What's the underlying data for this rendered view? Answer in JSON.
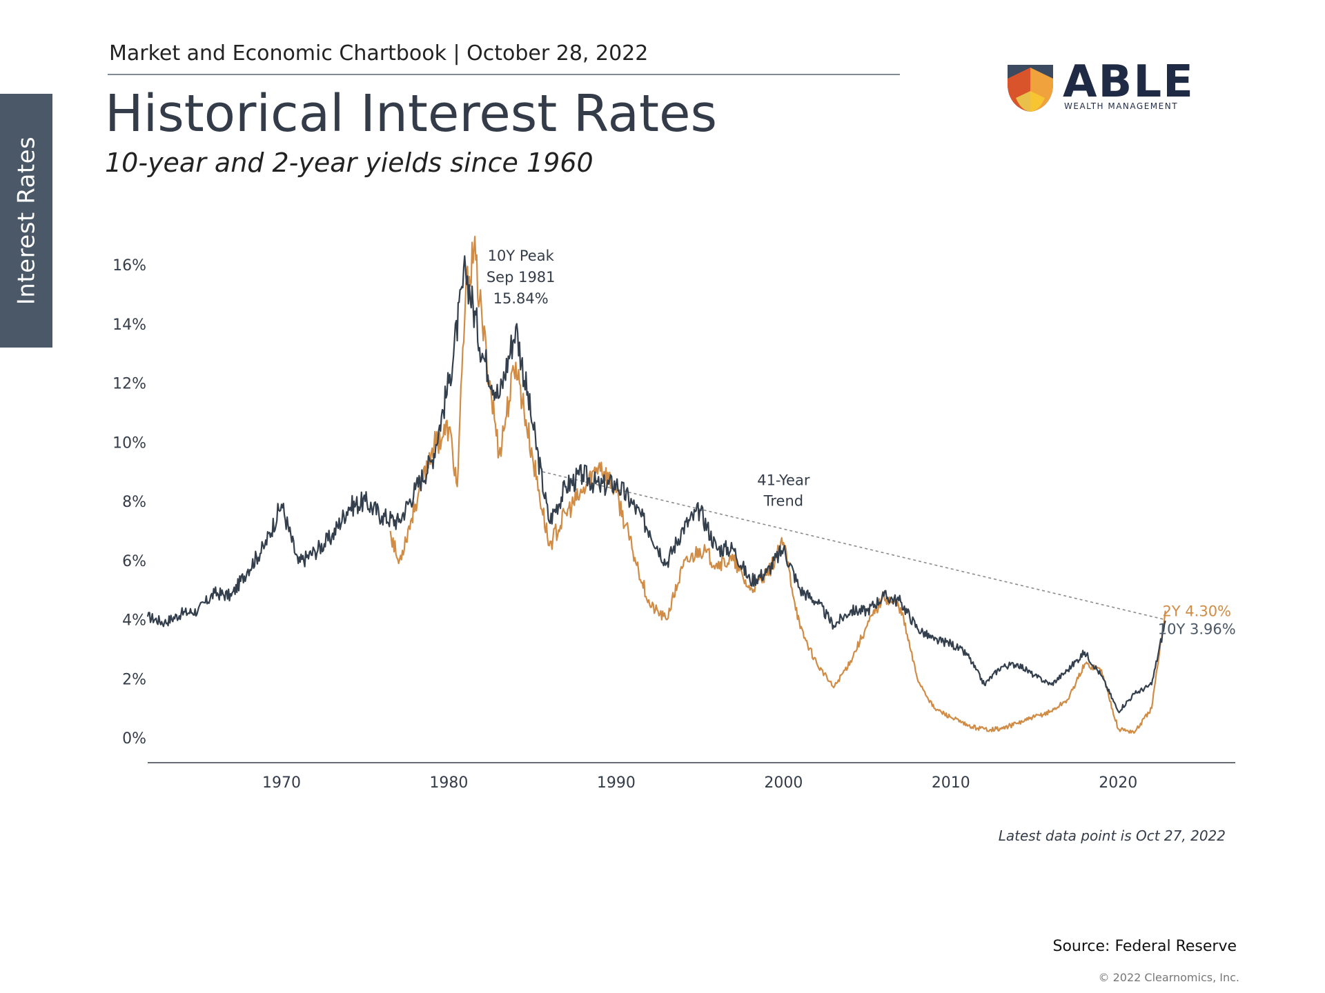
{
  "header": {
    "chartbook": "Market and Economic Chartbook | October 28, 2022",
    "title": "Historical Interest Rates",
    "subtitle": "10-year and 2-year yields since 1960"
  },
  "side_tab": {
    "label": "Interest Rates"
  },
  "logo": {
    "word": "ABLE",
    "tagline": "WEALTH MANAGEMENT",
    "colors": [
      "#3b4a5f",
      "#d9532b",
      "#f0a23c",
      "#f6c531",
      "#e8c04a"
    ]
  },
  "footer": {
    "latest_note": "Latest data point is Oct 27, 2022",
    "source": "Source: Federal Reserve",
    "copyright": "© 2022 Clearnomics, Inc."
  },
  "chart_data": {
    "type": "line",
    "title": "",
    "xlabel": "",
    "ylabel": "",
    "xlim": [
      1962,
      2027
    ],
    "ylim": [
      0,
      16
    ],
    "y_ticks": [
      0,
      2,
      4,
      6,
      8,
      10,
      12,
      14,
      16
    ],
    "y_tick_labels": [
      "0%",
      "2%",
      "4%",
      "6%",
      "8%",
      "10%",
      "12%",
      "14%",
      "16%"
    ],
    "x_ticks": [
      1970,
      1980,
      1990,
      2000,
      2010,
      2020
    ],
    "x_tick_labels": [
      "1970",
      "1980",
      "1990",
      "2000",
      "2010",
      "2020"
    ],
    "grid": false,
    "series": [
      {
        "name": "10Y",
        "color": "#333f4d",
        "points": [
          [
            1962,
            4.1
          ],
          [
            1963,
            3.9
          ],
          [
            1964,
            4.2
          ],
          [
            1965,
            4.3
          ],
          [
            1966,
            4.9
          ],
          [
            1967,
            4.8
          ],
          [
            1968,
            5.7
          ],
          [
            1969,
            6.5
          ],
          [
            1970,
            7.9
          ],
          [
            1971,
            5.9
          ],
          [
            1972,
            6.3
          ],
          [
            1973,
            6.8
          ],
          [
            1974,
            7.8
          ],
          [
            1975,
            8.0
          ],
          [
            1976,
            7.5
          ],
          [
            1977,
            7.3
          ],
          [
            1978,
            8.4
          ],
          [
            1979,
            9.4
          ],
          [
            1980,
            12.0
          ],
          [
            1981,
            15.84
          ],
          [
            1982,
            13.0
          ],
          [
            1983,
            11.5
          ],
          [
            1984,
            13.9
          ],
          [
            1985,
            10.6
          ],
          [
            1986,
            7.3
          ],
          [
            1987,
            8.5
          ],
          [
            1988,
            8.9
          ],
          [
            1989,
            8.5
          ],
          [
            1990,
            8.6
          ],
          [
            1991,
            7.9
          ],
          [
            1992,
            7.0
          ],
          [
            1993,
            5.9
          ],
          [
            1994,
            7.1
          ],
          [
            1995,
            7.7
          ],
          [
            1996,
            6.4
          ],
          [
            1997,
            6.4
          ],
          [
            1998,
            5.3
          ],
          [
            1999,
            5.6
          ],
          [
            2000,
            6.4
          ],
          [
            2001,
            5.0
          ],
          [
            2002,
            4.6
          ],
          [
            2003,
            3.8
          ],
          [
            2004,
            4.3
          ],
          [
            2005,
            4.3
          ],
          [
            2006,
            4.8
          ],
          [
            2007,
            4.6
          ],
          [
            2008,
            3.7
          ],
          [
            2009,
            3.3
          ],
          [
            2010,
            3.2
          ],
          [
            2011,
            2.8
          ],
          [
            2012,
            1.8
          ],
          [
            2013,
            2.4
          ],
          [
            2014,
            2.5
          ],
          [
            2015,
            2.1
          ],
          [
            2016,
            1.8
          ],
          [
            2017,
            2.3
          ],
          [
            2018,
            2.9
          ],
          [
            2019,
            2.1
          ],
          [
            2020,
            0.9
          ],
          [
            2021,
            1.5
          ],
          [
            2022.0,
            1.8
          ],
          [
            2022.82,
            3.96
          ]
        ]
      },
      {
        "name": "2Y",
        "color": "#d08c45",
        "points": [
          [
            1976.5,
            7.0
          ],
          [
            1977,
            5.9
          ],
          [
            1978,
            7.9
          ],
          [
            1979,
            9.8
          ],
          [
            1980,
            10.5
          ],
          [
            1980.5,
            8.5
          ],
          [
            1981,
            15.0
          ],
          [
            1981.5,
            16.5
          ],
          [
            1982,
            14.0
          ],
          [
            1983,
            9.6
          ],
          [
            1984,
            12.7
          ],
          [
            1985,
            9.5
          ],
          [
            1986,
            6.5
          ],
          [
            1987,
            7.6
          ],
          [
            1988,
            8.3
          ],
          [
            1989,
            9.3
          ],
          [
            1990,
            8.3
          ],
          [
            1991,
            6.3
          ],
          [
            1992,
            4.5
          ],
          [
            1993,
            4.0
          ],
          [
            1994,
            5.8
          ],
          [
            1995,
            6.4
          ],
          [
            1996,
            5.9
          ],
          [
            1997,
            6.0
          ],
          [
            1998,
            5.0
          ],
          [
            1999,
            5.5
          ],
          [
            2000,
            6.6
          ],
          [
            2001,
            3.7
          ],
          [
            2002,
            2.5
          ],
          [
            2003,
            1.7
          ],
          [
            2004,
            2.6
          ],
          [
            2005,
            3.8
          ],
          [
            2006,
            4.8
          ],
          [
            2007,
            4.4
          ],
          [
            2008,
            2.0
          ],
          [
            2009,
            1.0
          ],
          [
            2010,
            0.7
          ],
          [
            2011,
            0.4
          ],
          [
            2012,
            0.3
          ],
          [
            2013,
            0.3
          ],
          [
            2014,
            0.5
          ],
          [
            2015,
            0.7
          ],
          [
            2016,
            0.9
          ],
          [
            2017,
            1.3
          ],
          [
            2018,
            2.5
          ],
          [
            2019,
            2.3
          ],
          [
            2020,
            0.3
          ],
          [
            2021,
            0.2
          ],
          [
            2022.0,
            1.0
          ],
          [
            2022.4,
            2.6
          ],
          [
            2022.82,
            4.3
          ]
        ]
      }
    ],
    "trend_line": {
      "from": [
        1985.6,
        9.0
      ],
      "to": [
        2022.8,
        4.0
      ]
    },
    "annotations": {
      "peak": {
        "lines": [
          "10Y Peak",
          "Sep 1981",
          "15.84%"
        ],
        "x": 1984.3,
        "y": 15.84
      },
      "trend": {
        "lines": [
          "41-Year",
          "Trend"
        ],
        "x": 2000,
        "y": 8.0
      },
      "two_year_label": {
        "text": "2Y 4.30%",
        "x": 2024.7,
        "y": 4.3
      },
      "ten_year_label": {
        "text": "10Y 3.96%",
        "x": 2024.7,
        "y": 3.7
      }
    }
  }
}
